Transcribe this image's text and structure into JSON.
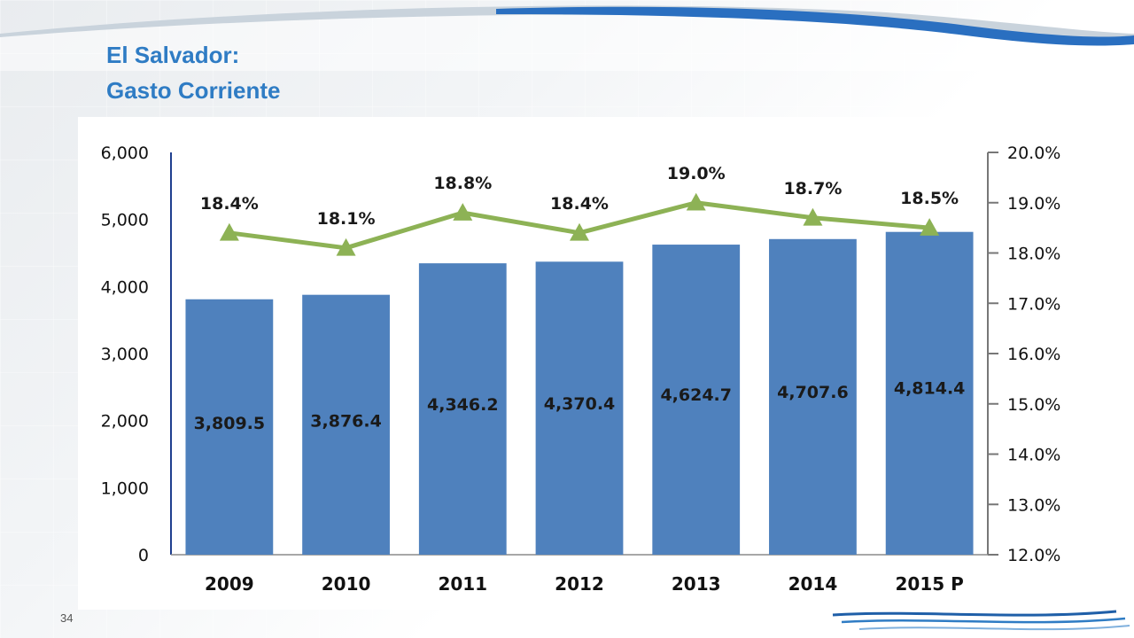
{
  "slide": {
    "title_line1": "El Salvador:",
    "title_line2": "Gasto Corriente",
    "page_number": "34"
  },
  "colors": {
    "title": "#2f7cc4",
    "bar": "#4f81bd",
    "line": "#8db255",
    "left_axis": "#1f3f8f",
    "right_axis": "#777777"
  },
  "chart_data": {
    "type": "bar",
    "categories": [
      "2009",
      "2010",
      "2011",
      "2012",
      "2013",
      "2014",
      "2015 P"
    ],
    "series": [
      {
        "type": "bar",
        "axis": "left",
        "values": [
          3809.5,
          3876.4,
          4346.2,
          4370.4,
          4624.7,
          4707.6,
          4814.4
        ],
        "data_labels": [
          "3,809.5",
          "3,876.4",
          "4,346.2",
          "4,370.4",
          "4,624.7",
          "4,707.6",
          "4,814.4"
        ]
      },
      {
        "type": "line",
        "axis": "right",
        "values": [
          18.4,
          18.1,
          18.8,
          18.4,
          19.0,
          18.7,
          18.5
        ],
        "data_labels": [
          "18.4%",
          "18.1%",
          "18.8%",
          "18.4%",
          "19.0%",
          "18.7%",
          "18.5%"
        ]
      }
    ],
    "y_left": {
      "lim": [
        0,
        6000
      ],
      "ticks": [
        0,
        1000,
        2000,
        3000,
        4000,
        5000,
        6000
      ],
      "tick_labels": [
        "0",
        "1,000",
        "2,000",
        "3,000",
        "4,000",
        "5,000",
        "6,000"
      ]
    },
    "y_right": {
      "lim": [
        12.0,
        20.0
      ],
      "ticks": [
        12,
        13,
        14,
        15,
        16,
        17,
        18,
        19,
        20
      ],
      "tick_labels": [
        "12.0%",
        "13.0%",
        "14.0%",
        "15.0%",
        "16.0%",
        "17.0%",
        "18.0%",
        "19.0%",
        "20.0%"
      ]
    },
    "grid": false,
    "legend": "none"
  }
}
